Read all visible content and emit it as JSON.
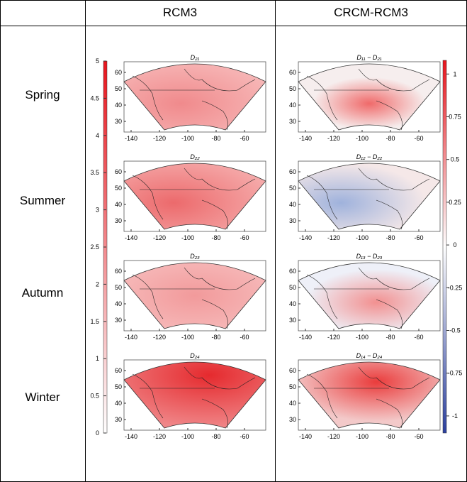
{
  "header": {
    "col1": "RCM3",
    "col2": "CRCM-RCM3"
  },
  "rows": [
    "Spring",
    "Summer",
    "Autumn",
    "Winter"
  ],
  "left_titles": [
    "D₂₁",
    "D₂₂",
    "D₂₃",
    "D₂₄"
  ],
  "right_titles": [
    "D₁₁ − D₂₁",
    "D₁₂ − D₂₂",
    "D₁₃ − D₂₃",
    "D₁₄ − D₂₄"
  ],
  "x_ticks": [
    "-140",
    "-120",
    "-100",
    "-80",
    "-60"
  ],
  "y_ticks": [
    "60",
    "50",
    "40",
    "30"
  ],
  "left_colorbar": {
    "min": 0,
    "max": 5,
    "ticks": [
      "0",
      "0.5",
      "1",
      "1.5",
      "2",
      "2.5",
      "3",
      "3.5",
      "4",
      "4.5",
      "5"
    ],
    "colors": [
      "#ffffff",
      "#e8141c"
    ]
  },
  "right_colorbar": {
    "min": -1.1,
    "max": 1.08,
    "ticks": [
      "1",
      "0.75",
      "0.5",
      "0.25",
      "0",
      "-0.25",
      "-0.5",
      "-0.75",
      "-1"
    ],
    "colors": [
      "#2b3f9e",
      "#ffffff",
      "#e8141c"
    ]
  }
}
